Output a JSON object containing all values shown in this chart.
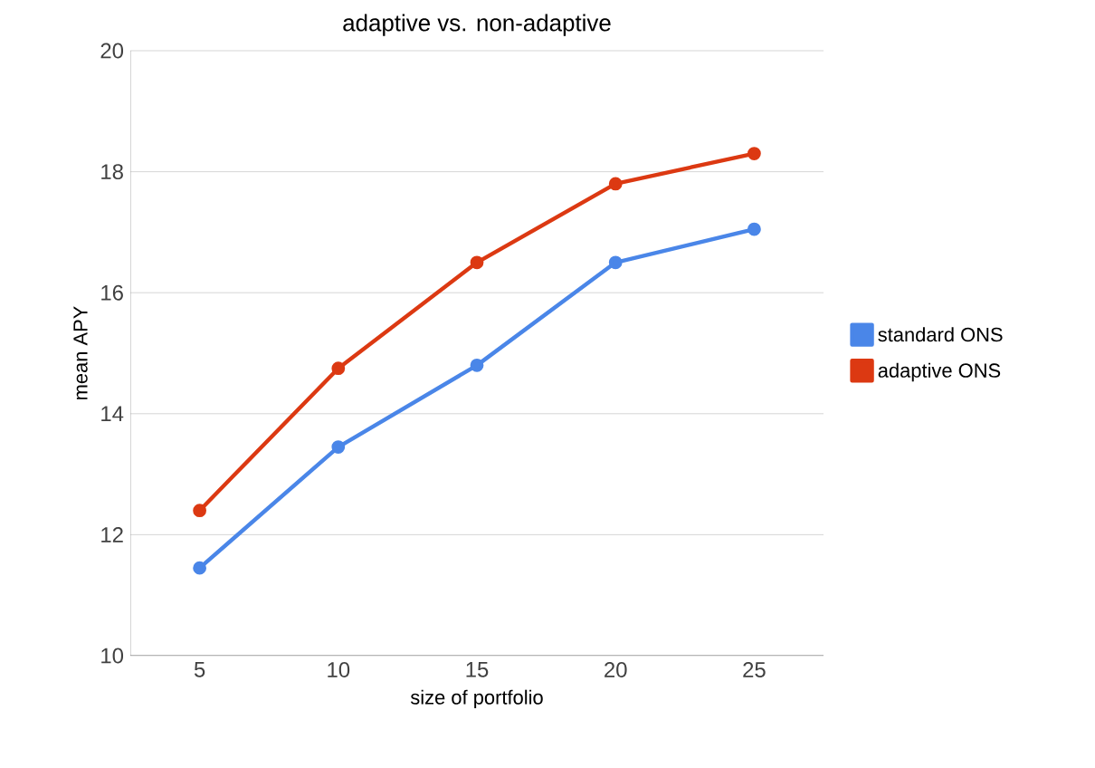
{
  "chart_data": {
    "type": "line",
    "title": "adaptive vs. non-adaptive",
    "xlabel": "size of portfolio",
    "ylabel": "mean APY",
    "categories": [
      "5",
      "10",
      "15",
      "20",
      "25"
    ],
    "series": [
      {
        "name": "standard ONS",
        "color": "#4a86e8",
        "values": [
          11.45,
          13.45,
          14.8,
          16.5,
          17.05
        ]
      },
      {
        "name": "adaptive ONS",
        "color": "#dc3912",
        "values": [
          12.4,
          14.75,
          16.5,
          17.8,
          18.3
        ]
      }
    ],
    "ylim": [
      10,
      20
    ],
    "yticks": [
      10,
      12,
      14,
      16,
      18,
      20
    ],
    "grid": "y",
    "legend": "right",
    "marker": "circle",
    "line_style": "solid"
  }
}
